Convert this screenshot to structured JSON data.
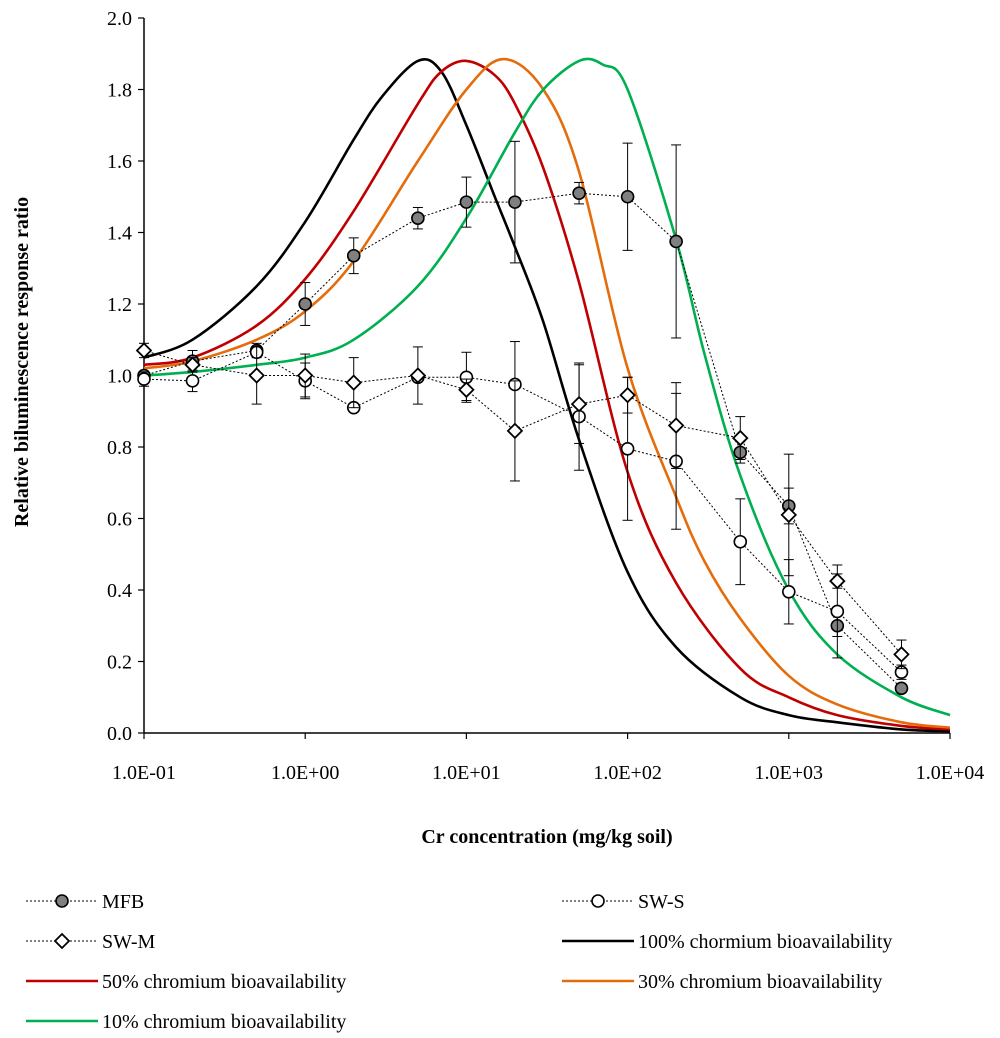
{
  "chart_data": {
    "type": "line",
    "title": "",
    "xlabel": "Cr concentration (mg/kg soil)",
    "ylabel": "Relative biluminescence response ratio",
    "x_scale": "log",
    "xlim": [
      0.1,
      10000
    ],
    "ylim": [
      0.0,
      2.0
    ],
    "x_ticks": [
      0.1,
      1,
      10,
      100,
      1000,
      10000
    ],
    "x_tick_labels": [
      "1.0E-01",
      "1.0E+00",
      "1.0E+01",
      "1.0E+02",
      "1.0E+03",
      "1.0E+04"
    ],
    "y_ticks": [
      0.0,
      0.2,
      0.4,
      0.6,
      0.8,
      1.0,
      1.2,
      1.4,
      1.6,
      1.8,
      2.0
    ],
    "y_tick_labels": [
      "0.0",
      "0.2",
      "0.4",
      "0.6",
      "0.8",
      "1.0",
      "1.2",
      "1.4",
      "1.6",
      "1.8",
      "2.0"
    ],
    "grid": false,
    "legend_position": "bottom",
    "series": [
      {
        "name": "MFB",
        "kind": "points",
        "marker": "filled-circle",
        "color": "#000000",
        "x": [
          0.1,
          0.2,
          0.5,
          1,
          2,
          5,
          10,
          20,
          50,
          100,
          200,
          500,
          1000,
          2000,
          5000
        ],
        "y": [
          1.0,
          1.04,
          1.07,
          1.2,
          1.335,
          1.44,
          1.485,
          1.485,
          1.51,
          1.5,
          1.375,
          0.785,
          0.635,
          0.3,
          0.125
        ],
        "err": [
          0.01,
          0.03,
          0.02,
          0.06,
          0.05,
          0.03,
          0.07,
          0.17,
          0.03,
          0.15,
          0.27,
          0.03,
          0.05,
          0.03,
          0.01
        ]
      },
      {
        "name": "SW-S",
        "kind": "points",
        "marker": "open-circle",
        "color": "#000000",
        "x": [
          0.1,
          0.2,
          0.5,
          1,
          2,
          5,
          10,
          20,
          50,
          100,
          200,
          500,
          1000,
          2000,
          5000
        ],
        "y": [
          0.99,
          0.985,
          1.065,
          0.985,
          0.91,
          0.995,
          0.995,
          0.975,
          0.885,
          0.795,
          0.76,
          0.535,
          0.395,
          0.34,
          0.17
        ],
        "err": [
          0.02,
          0.03,
          0.01,
          0.05,
          0.01,
          0.01,
          0.07,
          0.12,
          0.15,
          0.2,
          0.19,
          0.12,
          0.09,
          0.13,
          0.02
        ]
      },
      {
        "name": "SW-M",
        "kind": "points",
        "marker": "open-diamond",
        "color": "#000000",
        "x": [
          0.1,
          0.2,
          0.5,
          1,
          2,
          5,
          10,
          20,
          50,
          100,
          200,
          500,
          1000,
          2000,
          5000
        ],
        "y": [
          1.07,
          1.03,
          1.0,
          1.0,
          0.98,
          1.0,
          0.96,
          0.845,
          0.92,
          0.945,
          0.86,
          0.825,
          0.61,
          0.425,
          0.22
        ],
        "err": [
          0.02,
          0.02,
          0.08,
          0.06,
          0.07,
          0.08,
          0.03,
          0.14,
          0.11,
          0.05,
          0.12,
          0.06,
          0.17,
          0.02,
          0.04
        ]
      },
      {
        "name": "100% chormium bioavailability",
        "kind": "curve",
        "color": "#000000",
        "x": [
          0.1,
          0.2,
          0.5,
          1,
          2,
          3,
          5,
          7,
          10,
          15,
          20,
          30,
          50,
          100,
          200,
          500,
          1000,
          2000,
          5000,
          10000
        ],
        "y": [
          1.05,
          1.1,
          1.25,
          1.43,
          1.66,
          1.78,
          1.88,
          1.85,
          1.7,
          1.5,
          1.36,
          1.15,
          0.82,
          0.45,
          0.24,
          0.1,
          0.05,
          0.03,
          0.01,
          0.005
        ]
      },
      {
        "name": "50% chromium bioavailability",
        "kind": "curve",
        "color": "#c00000",
        "x": [
          0.1,
          0.2,
          0.5,
          1,
          2,
          5,
          7,
          10,
          15,
          20,
          30,
          50,
          100,
          200,
          500,
          1000,
          2000,
          5000,
          10000
        ],
        "y": [
          1.03,
          1.05,
          1.14,
          1.27,
          1.46,
          1.76,
          1.85,
          1.88,
          1.84,
          1.76,
          1.58,
          1.26,
          0.73,
          0.42,
          0.18,
          0.1,
          0.05,
          0.02,
          0.01
        ]
      },
      {
        "name": "30% chromium bioavailability",
        "kind": "curve",
        "color": "#e46c0a",
        "x": [
          0.1,
          0.2,
          0.5,
          1,
          2,
          5,
          10,
          17,
          30,
          50,
          100,
          200,
          300,
          500,
          1000,
          2000,
          5000,
          10000
        ],
        "y": [
          1.02,
          1.04,
          1.1,
          1.18,
          1.32,
          1.6,
          1.8,
          1.885,
          1.8,
          1.57,
          1.02,
          0.66,
          0.48,
          0.32,
          0.16,
          0.08,
          0.03,
          0.015
        ]
      },
      {
        "name": "10% chromium bioavailability",
        "kind": "curve",
        "color": "#00b050",
        "x": [
          0.1,
          0.2,
          0.5,
          1,
          2,
          5,
          10,
          20,
          30,
          50,
          70,
          100,
          200,
          300,
          500,
          1000,
          2000,
          5000,
          10000
        ],
        "y": [
          1.0,
          1.01,
          1.03,
          1.05,
          1.1,
          1.25,
          1.44,
          1.68,
          1.8,
          1.88,
          1.87,
          1.8,
          1.38,
          1.06,
          0.72,
          0.4,
          0.22,
          0.1,
          0.05
        ]
      }
    ]
  }
}
